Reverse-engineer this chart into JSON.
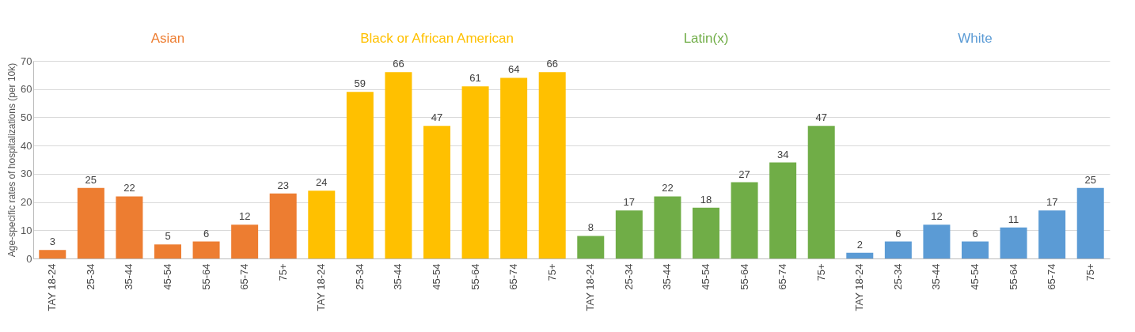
{
  "chart_data": {
    "type": "bar",
    "ylabel": "Age-specific rates of hospitalizations (per 10k)",
    "categories": [
      "TAY 18-24",
      "25-34",
      "35-44",
      "45-54",
      "55-64",
      "65-74",
      "75+",
      "TAY 18-24",
      "25-34",
      "35-44",
      "45-54",
      "55-64",
      "65-74",
      "75+",
      "TAY 18-24",
      "25-34",
      "35-44",
      "45-54",
      "55-64",
      "65-74",
      "75+",
      "TAY 18-24",
      "25-34",
      "35-44",
      "45-54",
      "55-64",
      "65-74",
      "75+"
    ],
    "series": [
      {
        "name": "Asian",
        "color": "#ed7d31",
        "values": [
          3,
          25,
          22,
          5,
          6,
          12,
          23,
          null,
          null,
          null,
          null,
          null,
          null,
          null,
          null,
          null,
          null,
          null,
          null,
          null,
          null,
          null,
          null,
          null,
          null,
          null,
          null,
          null
        ]
      },
      {
        "name": "Black or African American",
        "color": "#ffc000",
        "values": [
          null,
          null,
          null,
          null,
          null,
          null,
          null,
          24,
          59,
          66,
          47,
          61,
          64,
          66,
          null,
          null,
          null,
          null,
          null,
          null,
          null,
          null,
          null,
          null,
          null,
          null,
          null,
          null
        ]
      },
      {
        "name": "Latin(x)",
        "color": "#70ad47",
        "values": [
          null,
          null,
          null,
          null,
          null,
          null,
          null,
          null,
          null,
          null,
          null,
          null,
          null,
          null,
          8,
          17,
          22,
          18,
          27,
          34,
          47,
          null,
          null,
          null,
          null,
          null,
          null,
          null
        ]
      },
      {
        "name": "White",
        "color": "#5b9bd5",
        "values": [
          null,
          null,
          null,
          null,
          null,
          null,
          null,
          null,
          null,
          null,
          null,
          null,
          null,
          null,
          null,
          null,
          null,
          null,
          null,
          null,
          null,
          2,
          6,
          12,
          6,
          11,
          17,
          25
        ]
      }
    ],
    "ylim": [
      0,
      70
    ],
    "yticks": [
      0,
      10,
      20,
      30,
      40,
      50,
      60,
      70
    ],
    "grid": "y",
    "data_labels": true
  }
}
